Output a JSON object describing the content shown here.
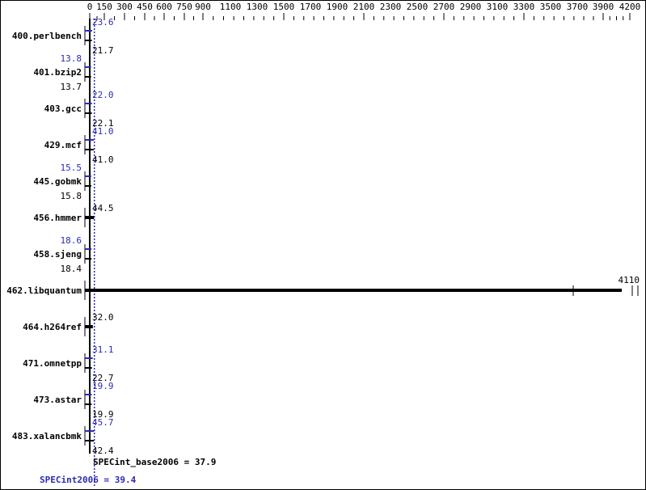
{
  "chart_data": {
    "type": "bar",
    "orientation": "horizontal",
    "x_ticks": [
      0,
      150,
      300,
      450,
      600,
      750,
      900,
      1100,
      1300,
      1500,
      1700,
      1900,
      2100,
      2300,
      2500,
      2700,
      2900,
      3100,
      3300,
      3500,
      3700,
      3900,
      4200
    ],
    "categories": [
      "400.perlbench",
      "401.bzip2",
      "403.gcc",
      "429.mcf",
      "445.gobmk",
      "456.hmmer",
      "458.sjeng",
      "462.libquantum",
      "464.h264ref",
      "471.omnetpp",
      "473.astar",
      "483.xalancbmk"
    ],
    "series": [
      {
        "name": "SPECint_base2006",
        "color": "#000000",
        "values": [
          21.7,
          13.7,
          22.1,
          41.0,
          15.8,
          44.5,
          18.4,
          4110,
          32.0,
          22.7,
          19.9,
          42.4
        ]
      },
      {
        "name": "SPECint2006",
        "color": "#2a2ab4",
        "values": [
          23.6,
          13.8,
          22.0,
          41.0,
          15.5,
          null,
          18.6,
          null,
          null,
          31.1,
          19.9,
          45.7
        ]
      }
    ],
    "base_label": "SPECint_base2006 = 37.9",
    "peak_label": "SPECint2006 = 39.4",
    "base_mean": 37.9,
    "peak_mean": 39.4
  }
}
